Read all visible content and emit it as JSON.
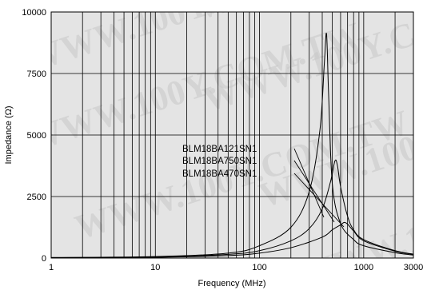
{
  "chart_data": {
    "type": "line",
    "xlabel": "Frequency (MHz)",
    "ylabel": "Impedance (Ω)",
    "x_scale": "log",
    "xlim": [
      1,
      3000
    ],
    "ylim": [
      0,
      10000
    ],
    "x_ticks": [
      1,
      10,
      100,
      1000,
      3000
    ],
    "x_tick_labels": [
      "1",
      "10",
      "100",
      "1000",
      "3000"
    ],
    "y_ticks": [
      0,
      2500,
      5000,
      7500,
      10000
    ],
    "y_tick_labels": [
      "0",
      "2500",
      "5000",
      "7500",
      "10000"
    ],
    "grid": true,
    "watermark": "WWW.100Y.COM.TW",
    "series": [
      {
        "name": "BLM18BA121SN1",
        "x": [
          1,
          10,
          50,
          100,
          200,
          300,
          380,
          420,
          440,
          460,
          500,
          600,
          800,
          1000,
          2000,
          3000
        ],
        "y": [
          20,
          60,
          200,
          500,
          1250,
          2700,
          5200,
          8000,
          9100,
          6700,
          3000,
          1400,
          750,
          500,
          220,
          120
        ]
      },
      {
        "name": "BLM18BA750SN1",
        "x": [
          1,
          10,
          50,
          100,
          200,
          300,
          400,
          480,
          530,
          560,
          600,
          700,
          800,
          1000,
          2000,
          3000
        ],
        "y": [
          20,
          40,
          150,
          300,
          700,
          1200,
          2000,
          3100,
          3950,
          3750,
          2900,
          1700,
          1150,
          750,
          300,
          160
        ]
      },
      {
        "name": "BLM18BA470SN1",
        "x": [
          1,
          10,
          50,
          100,
          200,
          400,
          500,
          600,
          650,
          700,
          800,
          1000,
          2000,
          3000
        ],
        "y": [
          10,
          30,
          100,
          200,
          420,
          850,
          1150,
          1350,
          1450,
          1380,
          1100,
          700,
          280,
          150
        ]
      }
    ]
  }
}
